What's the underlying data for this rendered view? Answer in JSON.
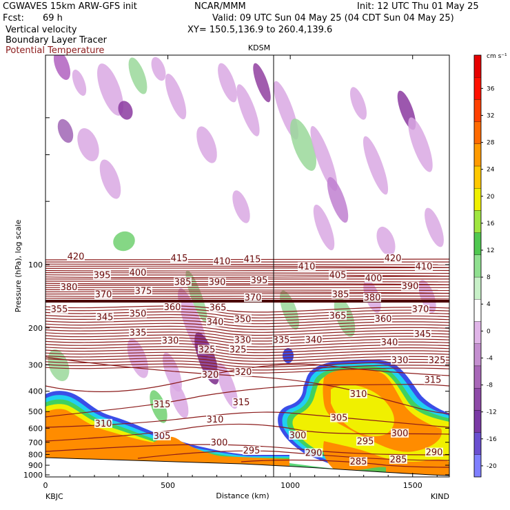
{
  "header": {
    "model": "CGWAVES 15km ARW-GFS init",
    "org": "NCAR/MMM",
    "init": "Init: 12 UTC Thu 01 May 25",
    "fcst_label": "Fcst:",
    "fcst_value": "69 h",
    "valid": "Valid: 09 UTC Sun 04 May 25 (04 CDT Sun 04 May 25)",
    "field1": "Vertical velocity",
    "xy": "XY= 150.5,136.9 to 260.4,139.6",
    "field2": "Boundary Layer Tracer",
    "field3": "Potential Temperature",
    "field3_color": "#8b1a1a"
  },
  "chart_data": {
    "type": "heatmap",
    "title": "KDSM",
    "xlabel": "Distance (km)",
    "ylabel": "Pressure (hPa), log scale",
    "xlim": [
      0,
      1650
    ],
    "x_ticks": [
      0,
      500,
      1000,
      1500
    ],
    "y_ticks": [
      100,
      200,
      300,
      400,
      500,
      600,
      700,
      800,
      900,
      1000
    ],
    "endpoints": {
      "left": "KBJC",
      "right": "KIND"
    },
    "marker": {
      "label": "KDSM",
      "x_km": 940
    },
    "colorbar": {
      "unit": "cm s⁻¹",
      "levels": [
        -20,
        -16,
        -12,
        -8,
        -4,
        0,
        4,
        8,
        12,
        16,
        20,
        24,
        28,
        32,
        36
      ],
      "colors": [
        "#7f7fff",
        "#6a4fd0",
        "#7a3aa5",
        "#8e4aa8",
        "#a867b8",
        "#c48fd0",
        "#e0b5e8",
        "#ffffff",
        "#c8f0c8",
        "#90e090",
        "#50c850",
        "#a0e640",
        "#f0f000",
        "#ffc800",
        "#ff9a00",
        "#ff6a00",
        "#ff4000",
        "#ff1000",
        "#e60000"
      ]
    },
    "theta_labels": [
      {
        "v": "420",
        "x": 110,
        "p": 93
      },
      {
        "v": "415",
        "x": 260,
        "p": 95
      },
      {
        "v": "410",
        "x": 322,
        "p": 98
      },
      {
        "v": "415",
        "x": 366,
        "p": 96
      },
      {
        "v": "410",
        "x": 445,
        "p": 104
      },
      {
        "v": "420",
        "x": 570,
        "p": 95
      },
      {
        "v": "410",
        "x": 615,
        "p": 104
      },
      {
        "v": "395",
        "x": 148,
        "p": 114
      },
      {
        "v": "400",
        "x": 200,
        "p": 111
      },
      {
        "v": "405",
        "x": 490,
        "p": 114
      },
      {
        "v": "400",
        "x": 542,
        "p": 118
      },
      {
        "v": "380",
        "x": 100,
        "p": 130
      },
      {
        "v": "385",
        "x": 265,
        "p": 123
      },
      {
        "v": "390",
        "x": 315,
        "p": 123
      },
      {
        "v": "395",
        "x": 376,
        "p": 121
      },
      {
        "v": "390",
        "x": 595,
        "p": 129
      },
      {
        "v": "370",
        "x": 150,
        "p": 141
      },
      {
        "v": "375",
        "x": 208,
        "p": 136
      },
      {
        "v": "385",
        "x": 494,
        "p": 141
      },
      {
        "v": "380",
        "x": 540,
        "p": 146
      },
      {
        "v": "355",
        "x": 86,
        "p": 166
      },
      {
        "v": "360",
        "x": 250,
        "p": 162
      },
      {
        "v": "365",
        "x": 316,
        "p": 163
      },
      {
        "v": "370",
        "x": 367,
        "p": 146
      },
      {
        "v": "370",
        "x": 610,
        "p": 166
      },
      {
        "v": "345",
        "x": 152,
        "p": 181
      },
      {
        "v": "350",
        "x": 200,
        "p": 174
      },
      {
        "v": "350",
        "x": 352,
        "p": 185
      },
      {
        "v": "365",
        "x": 490,
        "p": 178
      },
      {
        "v": "360",
        "x": 556,
        "p": 184
      },
      {
        "v": "340",
        "x": 312,
        "p": 191
      },
      {
        "v": "335",
        "x": 200,
        "p": 214
      },
      {
        "v": "330",
        "x": 247,
        "p": 234
      },
      {
        "v": "330",
        "x": 352,
        "p": 232
      },
      {
        "v": "335",
        "x": 408,
        "p": 232
      },
      {
        "v": "340",
        "x": 455,
        "p": 232
      },
      {
        "v": "340",
        "x": 565,
        "p": 238
      },
      {
        "v": "345",
        "x": 613,
        "p": 218
      },
      {
        "v": "325",
        "x": 300,
        "p": 258
      },
      {
        "v": "325",
        "x": 345,
        "p": 258
      },
      {
        "v": "330",
        "x": 580,
        "p": 290
      },
      {
        "v": "325",
        "x": 634,
        "p": 290
      },
      {
        "v": "320",
        "x": 305,
        "p": 340
      },
      {
        "v": "320",
        "x": 353,
        "p": 330
      },
      {
        "v": "315",
        "x": 628,
        "p": 360
      },
      {
        "v": "310",
        "x": 520,
        "p": 420
      },
      {
        "v": "315",
        "x": 235,
        "p": 470
      },
      {
        "v": "315",
        "x": 350,
        "p": 460
      },
      {
        "v": "305",
        "x": 492,
        "p": 545
      },
      {
        "v": "310",
        "x": 150,
        "p": 580
      },
      {
        "v": "310",
        "x": 312,
        "p": 555
      },
      {
        "v": "300",
        "x": 432,
        "p": 660
      },
      {
        "v": "300",
        "x": 580,
        "p": 645
      },
      {
        "v": "305",
        "x": 235,
        "p": 665
      },
      {
        "v": "295",
        "x": 530,
        "p": 705
      },
      {
        "v": "300",
        "x": 318,
        "p": 715
      },
      {
        "v": "295",
        "x": 365,
        "p": 780
      },
      {
        "v": "290",
        "x": 455,
        "p": 800
      },
      {
        "v": "290",
        "x": 630,
        "p": 795
      },
      {
        "v": "285",
        "x": 520,
        "p": 880
      },
      {
        "v": "285",
        "x": 578,
        "p": 860
      }
    ]
  }
}
